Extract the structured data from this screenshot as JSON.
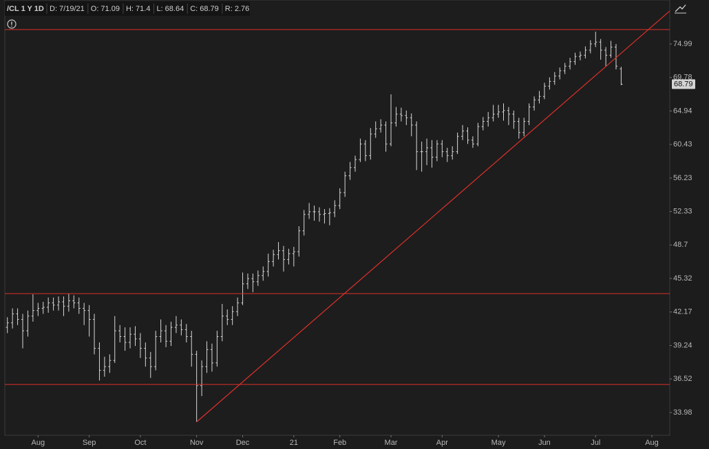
{
  "header": {
    "symbol": "/CL 1 Y 1D",
    "fields": [
      "D: 7/19/21",
      "O: 71.09",
      "H: 71.4",
      "L: 68.64",
      "C: 68.79",
      "R: 2.76"
    ]
  },
  "chart_data": {
    "type": "ohlc",
    "log_scale": true,
    "bar_color": "#d9d9d9",
    "line_color": "#e0302a",
    "categories": [
      null,
      null,
      null,
      null,
      null,
      null,
      "Aug",
      null,
      null,
      null,
      null,
      null,
      null,
      null,
      null,
      null,
      "Sep",
      null,
      null,
      null,
      null,
      null,
      null,
      null,
      null,
      null,
      "Oct",
      null,
      null,
      null,
      null,
      null,
      null,
      null,
      null,
      null,
      null,
      "Nov",
      null,
      null,
      null,
      null,
      null,
      null,
      null,
      null,
      "Dec",
      null,
      null,
      null,
      null,
      null,
      null,
      null,
      null,
      null,
      "21",
      null,
      null,
      null,
      null,
      null,
      null,
      null,
      null,
      "Feb",
      null,
      null,
      null,
      null,
      null,
      null,
      null,
      null,
      null,
      "Mar",
      null,
      null,
      null,
      null,
      null,
      null,
      null,
      null,
      null,
      "Apr",
      null,
      null,
      null,
      null,
      null,
      null,
      null,
      null,
      null,
      null,
      "May",
      null,
      null,
      null,
      null,
      null,
      null,
      null,
      null,
      "Jun",
      null,
      null,
      null,
      null,
      null,
      null,
      null,
      null,
      null,
      "Jul",
      null,
      null,
      null,
      null,
      null,
      null,
      null,
      null,
      null,
      null,
      "Aug",
      null,
      null,
      null
    ],
    "open": [
      40.8,
      41.2,
      42.0,
      41.5,
      40.5,
      41.8,
      42.3,
      42.5,
      42.6,
      43.0,
      42.8,
      43.1,
      42.7,
      43.2,
      43.0,
      42.5,
      42.3,
      41.5,
      39.0,
      37.2,
      37.5,
      38.0,
      40.5,
      40.0,
      39.5,
      40.2,
      39.8,
      39.0,
      38.2,
      37.5,
      40.0,
      40.5,
      39.6,
      40.8,
      41.0,
      40.6,
      40.0,
      38.5,
      36.0,
      37.5,
      38.9,
      37.8,
      40.0,
      41.8,
      41.5,
      42.2,
      43.0,
      44.8,
      45.3,
      45.0,
      45.6,
      46.0,
      47.0,
      47.7,
      48.1,
      47.2,
      47.8,
      48.0,
      50.2,
      52.0,
      52.3,
      52.3,
      52.0,
      52.1,
      52.2,
      53.0,
      54.5,
      56.5,
      57.5,
      58.5,
      60.5,
      59.0,
      61.8,
      62.5,
      63.0,
      60.5,
      63.3,
      64.5,
      64.3,
      64.0,
      63.0,
      59.5,
      59.5,
      60.0,
      58.8,
      60.5,
      59.5,
      59.0,
      59.5,
      61.5,
      62.2,
      61.0,
      60.5,
      62.8,
      63.5,
      64.0,
      64.5,
      64.8,
      65.0,
      64.5,
      63.5,
      62.0,
      63.5,
      65.5,
      66.5,
      67.0,
      68.5,
      69.2,
      70.0,
      70.8,
      71.5,
      72.2,
      73.0,
      73.2,
      74.0,
      75.0,
      75.3,
      74.0,
      73.2,
      74.5,
      71.09,
      null,
      null,
      null,
      null,
      null,
      null,
      null,
      null,
      null
    ],
    "high": [
      41.7,
      42.5,
      42.5,
      42.0,
      42.3,
      43.8,
      43.0,
      43.1,
      43.5,
      43.5,
      43.6,
      43.6,
      43.9,
      43.7,
      43.5,
      43.0,
      42.8,
      42.0,
      39.5,
      38.3,
      38.5,
      41.8,
      41.0,
      40.8,
      40.8,
      40.9,
      40.3,
      39.5,
      38.7,
      40.5,
      41.5,
      41.0,
      41.3,
      41.8,
      41.5,
      41.1,
      40.5,
      38.8,
      38.0,
      39.6,
      39.4,
      40.5,
      42.9,
      42.4,
      42.7,
      43.5,
      45.9,
      45.8,
      45.8,
      46.1,
      46.5,
      47.8,
      48.2,
      49.0,
      48.6,
      48.3,
      48.5,
      50.7,
      52.5,
      53.3,
      53.0,
      52.8,
      52.6,
      52.7,
      53.6,
      55.0,
      57.0,
      58.2,
      59.0,
      61.2,
      61.0,
      62.6,
      63.5,
      63.8,
      63.5,
      67.3,
      65.5,
      65.4,
      65.0,
      64.6,
      63.5,
      60.8,
      61.2,
      61.0,
      61.0,
      61.0,
      60.0,
      60.2,
      62.0,
      63.0,
      62.7,
      61.5,
      63.3,
      64.1,
      64.8,
      65.8,
      65.8,
      66.0,
      65.5,
      65.0,
      64.0,
      64.0,
      66.0,
      67.0,
      67.8,
      69.0,
      69.8,
      70.6,
      71.3,
      72.0,
      72.8,
      73.6,
      73.8,
      74.6,
      75.6,
      77.0,
      75.8,
      74.5,
      75.5,
      75.0,
      71.4,
      null,
      null,
      null,
      null,
      null,
      null,
      null,
      null,
      null
    ],
    "low": [
      40.3,
      40.7,
      41.0,
      39.0,
      40.0,
      41.3,
      41.8,
      42.0,
      42.1,
      42.3,
      42.3,
      41.8,
      42.2,
      42.5,
      42.0,
      41.0,
      40.0,
      38.5,
      36.4,
      36.7,
      37.0,
      37.8,
      39.5,
      38.8,
      39.0,
      39.2,
      38.2,
      37.5,
      36.6,
      37.2,
      39.5,
      39.1,
      39.2,
      40.3,
      40.1,
      39.5,
      37.5,
      33.3,
      35.2,
      37.0,
      37.1,
      37.5,
      39.6,
      41.0,
      41.0,
      41.8,
      42.8,
      44.3,
      44.0,
      44.6,
      45.1,
      45.5,
      46.5,
      47.2,
      46.0,
      46.7,
      46.5,
      47.5,
      49.7,
      51.5,
      51.3,
      51.2,
      51.0,
      50.8,
      51.7,
      52.6,
      54.0,
      56.0,
      57.0,
      58.2,
      58.3,
      58.5,
      61.3,
      62.0,
      59.5,
      60.2,
      62.8,
      63.5,
      63.0,
      61.5,
      57.2,
      57.0,
      57.8,
      57.5,
      58.3,
      58.8,
      58.2,
      58.5,
      59.2,
      61.0,
      60.5,
      60.0,
      60.2,
      62.3,
      62.8,
      63.5,
      64.0,
      63.6,
      63.0,
      62.5,
      61.2,
      61.5,
      63.0,
      65.0,
      66.0,
      66.6,
      68.0,
      68.7,
      69.5,
      70.3,
      71.0,
      71.7,
      72.4,
      72.7,
      73.5,
      74.5,
      72.5,
      71.5,
      72.8,
      71.0,
      68.64,
      null,
      null,
      null,
      null,
      null,
      null,
      null,
      null,
      null
    ],
    "close": [
      41.2,
      42.0,
      41.5,
      40.5,
      41.8,
      42.3,
      42.5,
      42.6,
      43.0,
      42.8,
      43.1,
      42.7,
      43.2,
      43.0,
      42.5,
      42.3,
      41.5,
      39.0,
      37.2,
      37.5,
      38.0,
      40.5,
      40.0,
      39.5,
      40.2,
      39.8,
      39.0,
      38.2,
      37.5,
      40.0,
      40.5,
      39.6,
      40.8,
      41.0,
      40.6,
      40.0,
      38.5,
      36.0,
      37.5,
      38.9,
      37.8,
      40.0,
      41.8,
      41.5,
      42.2,
      43.0,
      44.8,
      45.3,
      45.0,
      45.6,
      46.0,
      47.0,
      47.7,
      48.1,
      47.2,
      47.8,
      48.0,
      50.2,
      52.0,
      52.3,
      52.3,
      52.0,
      52.1,
      52.2,
      53.0,
      54.5,
      56.5,
      57.5,
      58.5,
      60.5,
      59.0,
      61.8,
      62.5,
      63.0,
      60.5,
      63.3,
      64.5,
      64.3,
      64.0,
      63.0,
      59.5,
      59.5,
      60.0,
      58.8,
      60.5,
      59.5,
      59.0,
      59.5,
      61.5,
      62.2,
      61.0,
      60.5,
      62.8,
      63.5,
      64.0,
      64.5,
      64.8,
      65.0,
      64.5,
      63.5,
      62.0,
      63.5,
      65.5,
      66.5,
      67.0,
      68.5,
      69.2,
      70.0,
      70.8,
      71.5,
      72.2,
      73.0,
      73.2,
      74.0,
      75.0,
      75.3,
      74.0,
      73.2,
      74.5,
      71.5,
      68.79,
      null,
      null,
      null,
      null,
      null,
      null,
      null,
      null,
      null
    ],
    "hlines": [
      77.35,
      43.87,
      36.09
    ],
    "trendline": [
      33.3,
      80.5
    ],
    "ylim": [
      32.36,
      82.42
    ],
    "yticks": [
      33.98,
      36.52,
      39.24,
      42.17,
      45.32,
      48.7,
      52.33,
      56.23,
      60.43,
      64.94,
      69.78,
      74.99
    ]
  }
}
